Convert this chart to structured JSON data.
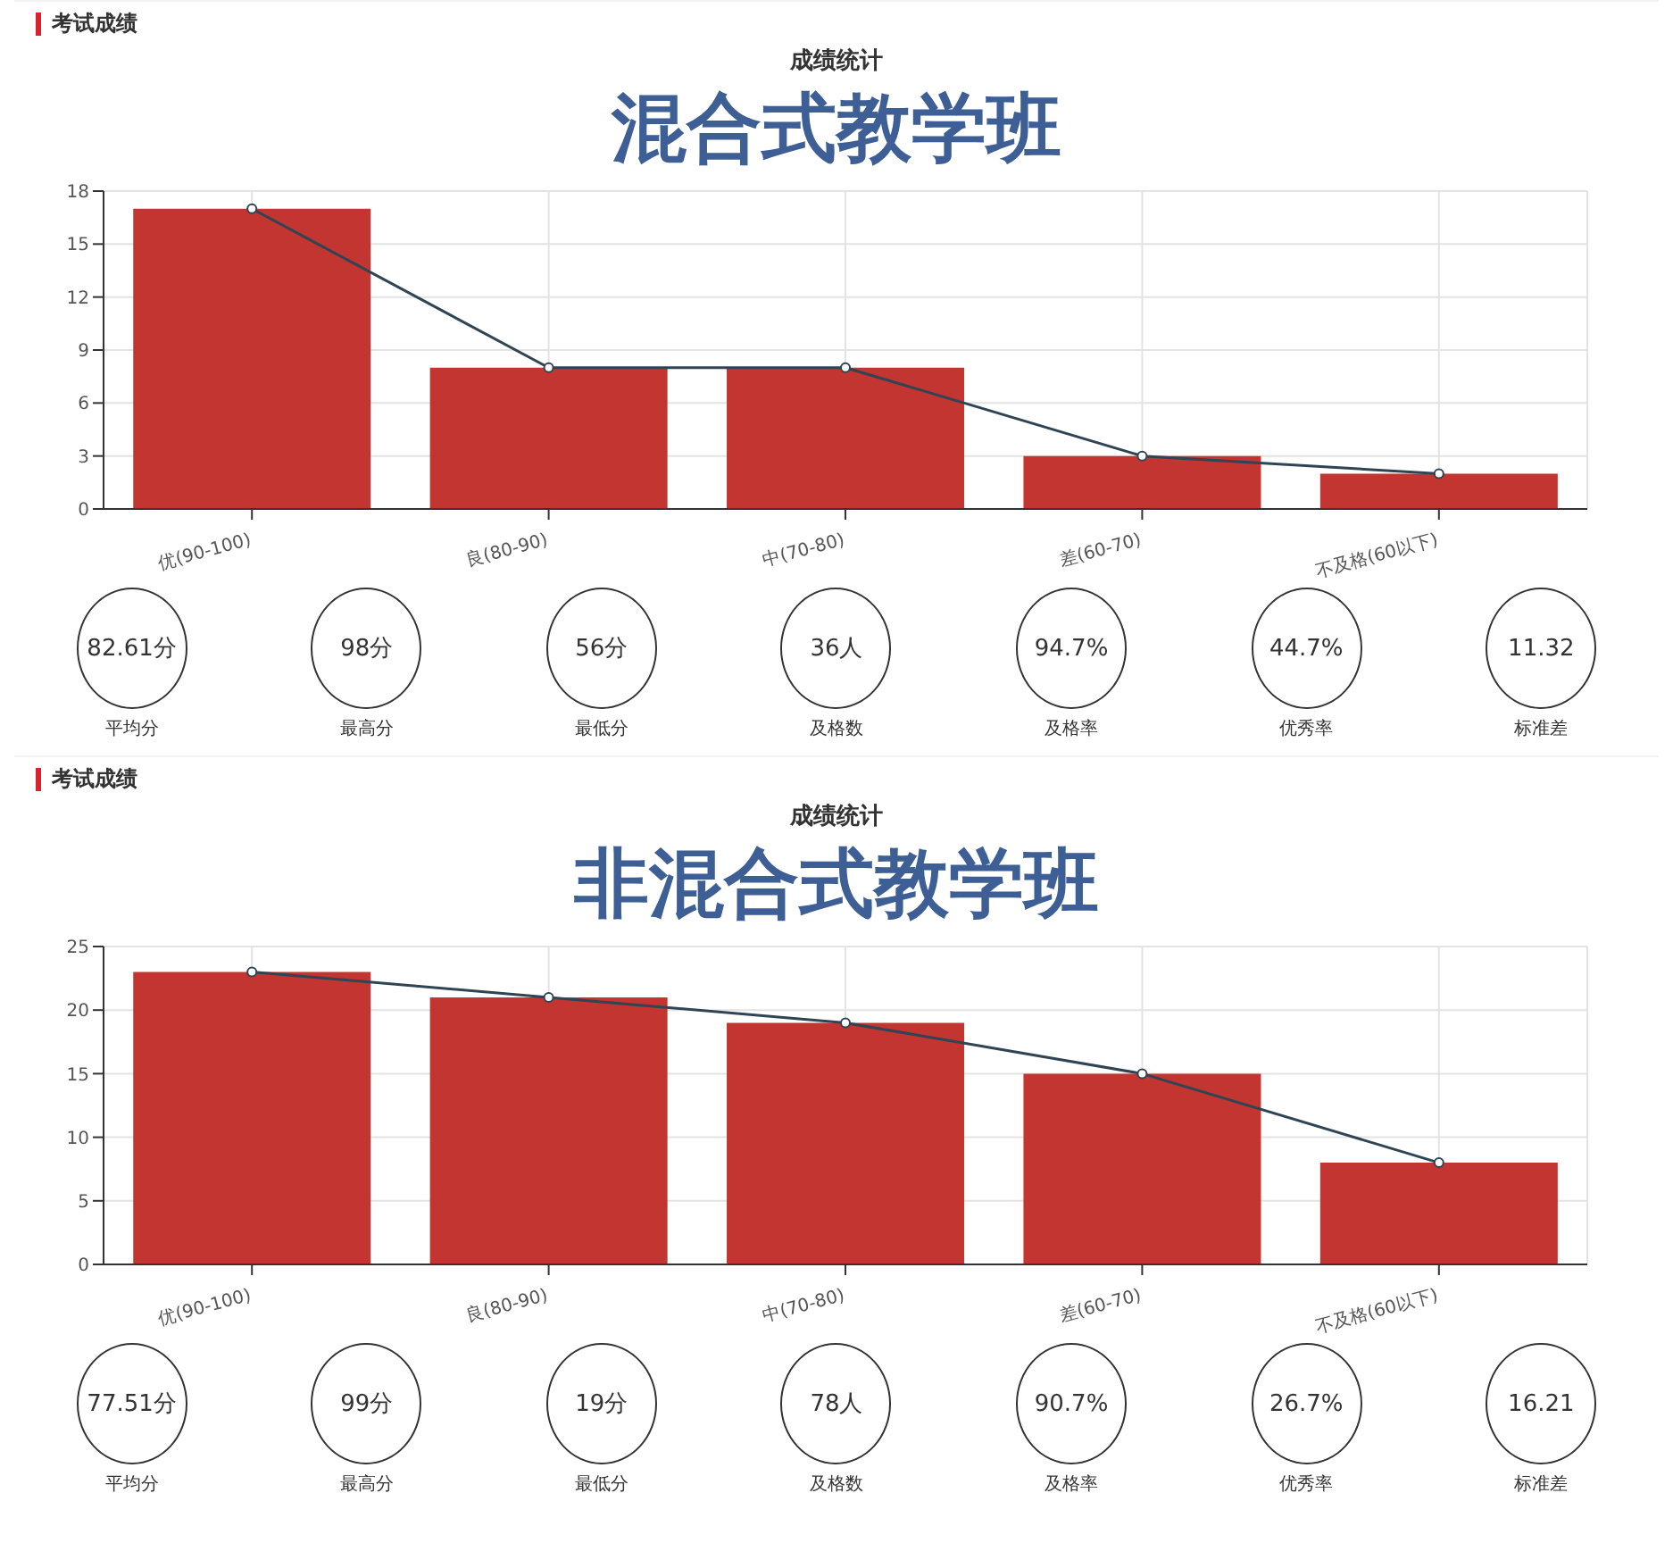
{
  "chart_data": [
    {
      "type": "bar",
      "title": "成绩统计",
      "subtitle": "混合式教学班",
      "annotations": [
        "考试成绩"
      ],
      "categories": [
        "优(90-100)",
        "良(80-90)",
        "中(70-80)",
        "差(60-70)",
        "不及格(60以下)"
      ],
      "series": [
        {
          "type": "bar",
          "color": "#c23531",
          "values": [
            17,
            8,
            8,
            3,
            2
          ]
        },
        {
          "type": "line",
          "color": "#2f4554",
          "values": [
            17,
            8,
            8,
            3,
            2
          ]
        }
      ],
      "ylim": [
        0,
        18
      ],
      "yticks": [
        0,
        3,
        6,
        9,
        12,
        15,
        18
      ],
      "grid": true,
      "legend": false,
      "marker": "circle"
    },
    {
      "type": "other",
      "categories": [
        "平均分",
        "最高分",
        "最低分",
        "及格数",
        "及格率",
        "优秀率",
        "标准差"
      ],
      "value_labels": [
        "82.61分",
        "98分",
        "56分",
        "36人",
        "94.7%",
        "44.7%",
        "11.32"
      ]
    },
    {
      "type": "bar",
      "title": "成绩统计",
      "subtitle": "非混合式教学班",
      "annotations": [
        "考试成绩"
      ],
      "categories": [
        "优(90-100)",
        "良(80-90)",
        "中(70-80)",
        "差(60-70)",
        "不及格(60以下)"
      ],
      "series": [
        {
          "type": "bar",
          "color": "#c23531",
          "values": [
            23,
            21,
            19,
            15,
            8
          ]
        },
        {
          "type": "line",
          "color": "#2f4554",
          "values": [
            23,
            21,
            19,
            15,
            8
          ]
        }
      ],
      "ylim": [
        0,
        25
      ],
      "yticks": [
        0,
        5,
        10,
        15,
        20,
        25
      ],
      "grid": true,
      "legend": false,
      "marker": "circle"
    },
    {
      "type": "other",
      "categories": [
        "平均分",
        "最高分",
        "最低分",
        "及格数",
        "及格率",
        "优秀率",
        "标准差"
      ],
      "value_labels": [
        "77.51分",
        "99分",
        "19分",
        "78人",
        "90.7%",
        "26.7%",
        "16.21"
      ]
    }
  ]
}
